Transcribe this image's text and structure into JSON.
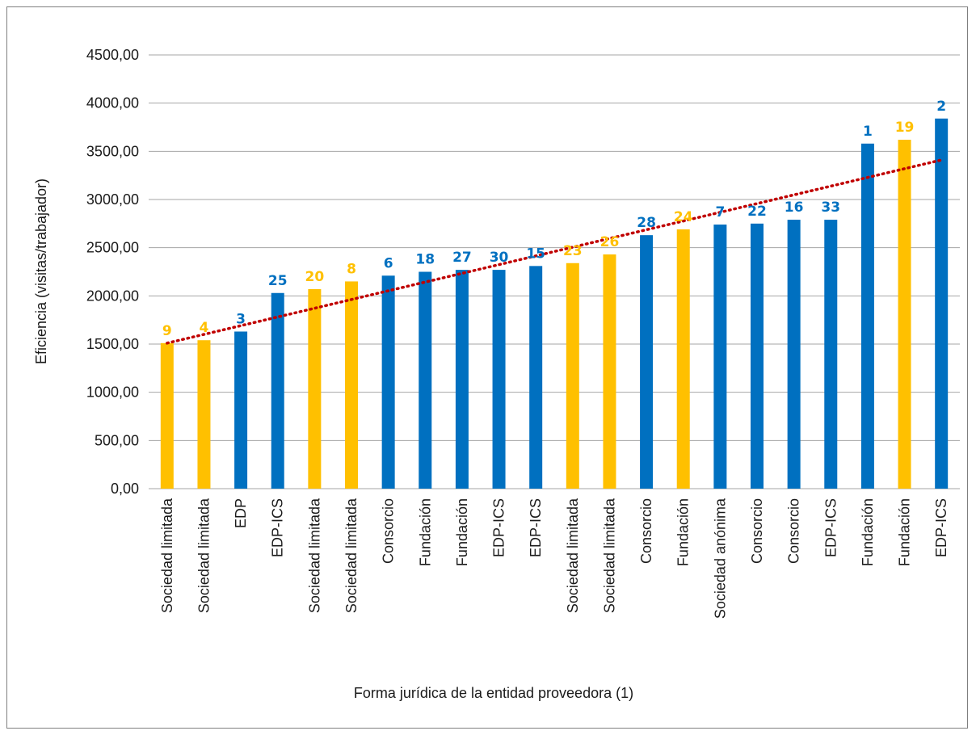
{
  "chart_data": {
    "type": "bar",
    "title": "",
    "xlabel": "Forma jurídica de la entidad proveedora (1)",
    "ylabel": "Eficiencia (visitas/trabajador)",
    "ylim": [
      0,
      4500
    ],
    "yticks": [
      "0,00",
      "500,00",
      "1000,00",
      "1500,00",
      "2000,00",
      "2500,00",
      "3000,00",
      "3500,00",
      "4000,00",
      "4500,00"
    ],
    "grid": true,
    "legend": "none",
    "colors": {
      "blue": "#0070c0",
      "yellow": "#ffc000",
      "trend": "#c00000",
      "grid": "#a6a6a6"
    },
    "categories": [
      "Sociedad limitada",
      "Sociedad limitada",
      "EDP",
      "EDP-ICS",
      "Sociedad limitada",
      "Sociedad limitada",
      "Consorcio",
      "Fundación",
      "Fundación",
      "EDP-ICS",
      "EDP-ICS",
      "Sociedad limitada",
      "Sociedad limitada",
      "Consorcio",
      "Fundación",
      "Sociedad anónima",
      "Consorcio",
      "Consorcio",
      "EDP-ICS",
      "Fundación",
      "Fundación",
      "EDP-ICS"
    ],
    "values": [
      1510,
      1540,
      1630,
      2030,
      2070,
      2150,
      2210,
      2250,
      2270,
      2270,
      2310,
      2340,
      2430,
      2630,
      2690,
      2740,
      2750,
      2790,
      2790,
      3580,
      3620,
      3840
    ],
    "labels": [
      "9",
      "4",
      "3",
      "25",
      "20",
      "8",
      "6",
      "18",
      "27",
      "30",
      "15",
      "23",
      "26",
      "28",
      "24",
      "7",
      "22",
      "16",
      "33",
      "1",
      "19",
      "2"
    ],
    "bar_colors": [
      "yellow",
      "yellow",
      "blue",
      "blue",
      "yellow",
      "yellow",
      "blue",
      "blue",
      "blue",
      "blue",
      "blue",
      "yellow",
      "yellow",
      "blue",
      "yellow",
      "blue",
      "blue",
      "blue",
      "blue",
      "blue",
      "yellow",
      "blue"
    ],
    "trendline": {
      "type": "linear",
      "style": "dotted",
      "start": 1510,
      "end": 3410
    }
  }
}
